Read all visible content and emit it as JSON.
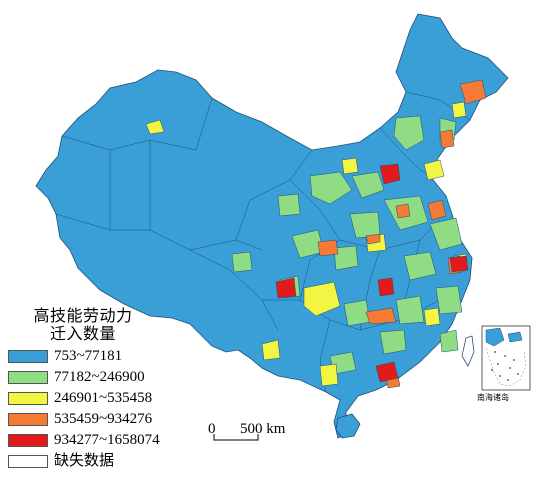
{
  "legend": {
    "title_line1": "高技能劳动力",
    "title_line2": "迁入数量",
    "items": [
      {
        "label": "753~77181",
        "color": "#3a9fd6"
      },
      {
        "label": "77182~246900",
        "color": "#8fdc84"
      },
      {
        "label": "246901~535458",
        "color": "#f2f541"
      },
      {
        "label": "535459~934276",
        "color": "#f57a33"
      },
      {
        "label": "934277~1658074",
        "color": "#e21a1a"
      },
      {
        "label": "缺失数据",
        "color": "#ffffff"
      }
    ]
  },
  "scale_bar": {
    "start_label": "0",
    "end_label": "500 km"
  },
  "inset": {
    "caption": "南海诸岛"
  }
}
